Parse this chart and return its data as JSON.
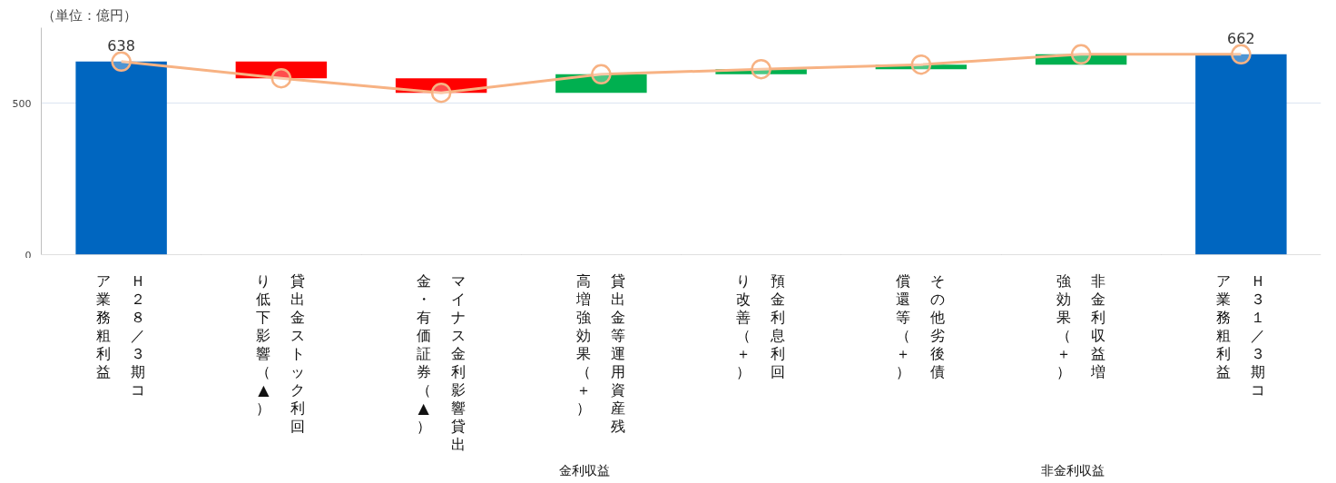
{
  "chart_data": {
    "type": "bar",
    "categories": [
      "Ｈ２８／３期コア業務粗利益",
      "貸出金ストック利回り低下影響（▲）",
      "マイナス金利影響貸出金・有価証券（▲）",
      "貸出金等運用資産残高増強効果（＋）",
      "預金利息利回り改善（＋）",
      "その他劣後債償還等（＋）",
      "非金利収益増強効果（＋）",
      "Ｈ３１／３期コア業務粗利益"
    ],
    "series": [
      {
        "values": [
          638,
          -55,
          -48,
          61,
          17,
          15,
          34,
          662
        ],
        "base": [
          0,
          638,
          583,
          535,
          596,
          613,
          628,
          0
        ],
        "colors": [
          "#0066c0",
          "#ff0000",
          "#ff0000",
          "#00b050",
          "#00b050",
          "#00b050",
          "#00b050",
          "#0066c0"
        ],
        "value_labels": [
          "638",
          null,
          null,
          null,
          null,
          null,
          null,
          "662"
        ]
      },
      {
        "type": "line",
        "color": "#f7b283",
        "marker": "circle",
        "values": [
          638,
          583,
          535,
          596,
          613,
          628,
          662,
          662
        ]
      }
    ],
    "ylim": [
      0,
      750
    ],
    "yticks": [
      0,
      500
    ],
    "grid": "y",
    "annotations": [
      "（単位：億円）",
      "金利収益",
      "非金利収益"
    ]
  }
}
